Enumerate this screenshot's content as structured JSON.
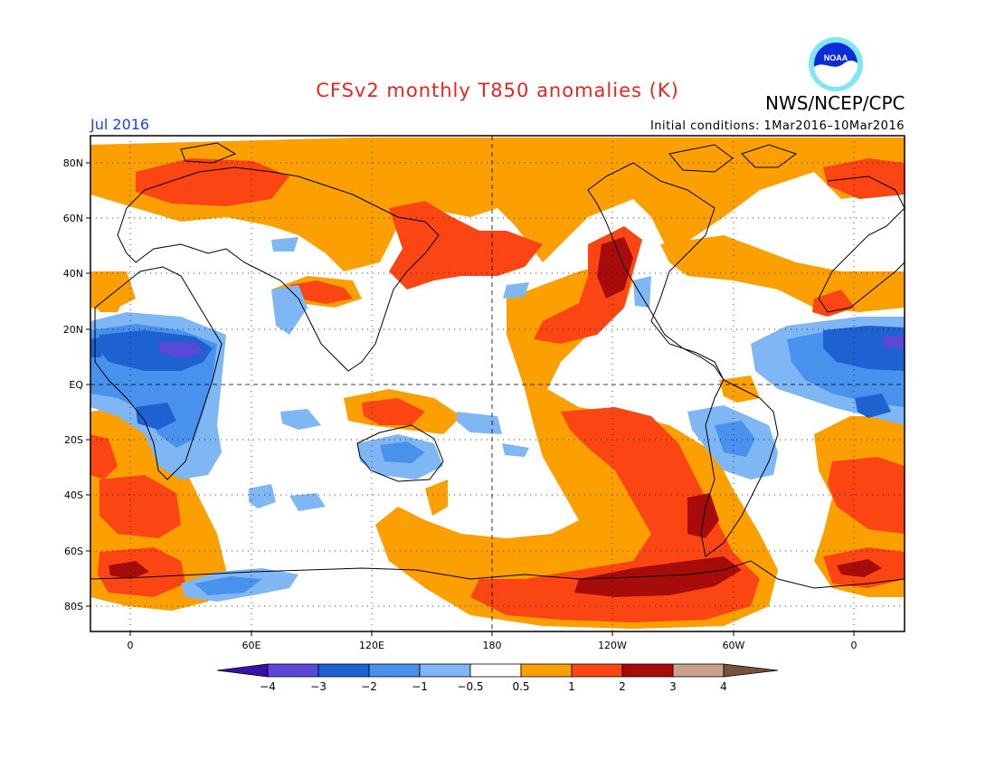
{
  "title": "CFSv2 monthly T850 anomalies (K)",
  "agency": "NWS/NCEP/CPC",
  "month_label": "Jul 2016",
  "initial_conditions": "Initial conditions: 1Mar2016–10Mar2016",
  "logo": {
    "text": "NOAA",
    "icon": "noaa-logo-icon"
  },
  "axes": {
    "lat_ticks": [
      "80N",
      "60N",
      "40N",
      "20N",
      "EQ",
      "20S",
      "40S",
      "60S",
      "80S"
    ],
    "lon_ticks": [
      "0",
      "60E",
      "120E",
      "180",
      "120W",
      "60W",
      "0"
    ]
  },
  "colorbar": {
    "labels": [
      "−4",
      "−3",
      "−2",
      "−1",
      "−0.5",
      "0.5",
      "1",
      "2",
      "3",
      "4"
    ],
    "colors": [
      "#3a10a8",
      "#5a48d8",
      "#1e62d2",
      "#4891ec",
      "#7fb6f4",
      "#ffffff",
      "#fba000",
      "#fb4614",
      "#a80c0a",
      "#c8a08c",
      "#78503c"
    ]
  },
  "colors": {
    "title": "#e8251e",
    "month": "#1f3fe0"
  }
}
